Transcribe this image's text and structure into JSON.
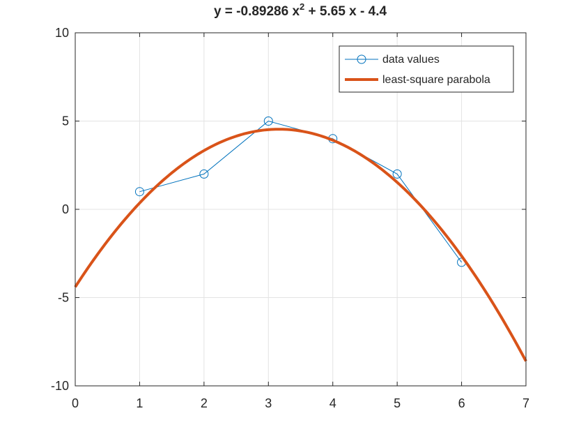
{
  "chart_data": {
    "type": "line",
    "title": {
      "prefix": "y = -0.89286 x",
      "superscript": "2",
      "suffix": " + 5.65 x - 4.4"
    },
    "xlabel": "",
    "ylabel": "",
    "xlim": [
      0,
      7
    ],
    "ylim": [
      -10,
      10
    ],
    "x_ticks": [
      0,
      1,
      2,
      3,
      4,
      5,
      6,
      7
    ],
    "y_ticks": [
      -10,
      -5,
      0,
      5,
      10
    ],
    "grid": true,
    "legend_position": "top-right",
    "series": [
      {
        "name": "data values",
        "style": "line-with-circle-markers",
        "color": "#0072bd",
        "x": [
          1,
          2,
          3,
          4,
          5,
          6
        ],
        "y": [
          1,
          2,
          5,
          4,
          2,
          -3
        ]
      },
      {
        "name": "least-square parabola",
        "style": "thick-line",
        "color": "#d95319",
        "coefficients": {
          "a": -0.89286,
          "b": 5.65,
          "c": -4.4
        },
        "x_range": [
          0,
          7
        ]
      }
    ]
  }
}
